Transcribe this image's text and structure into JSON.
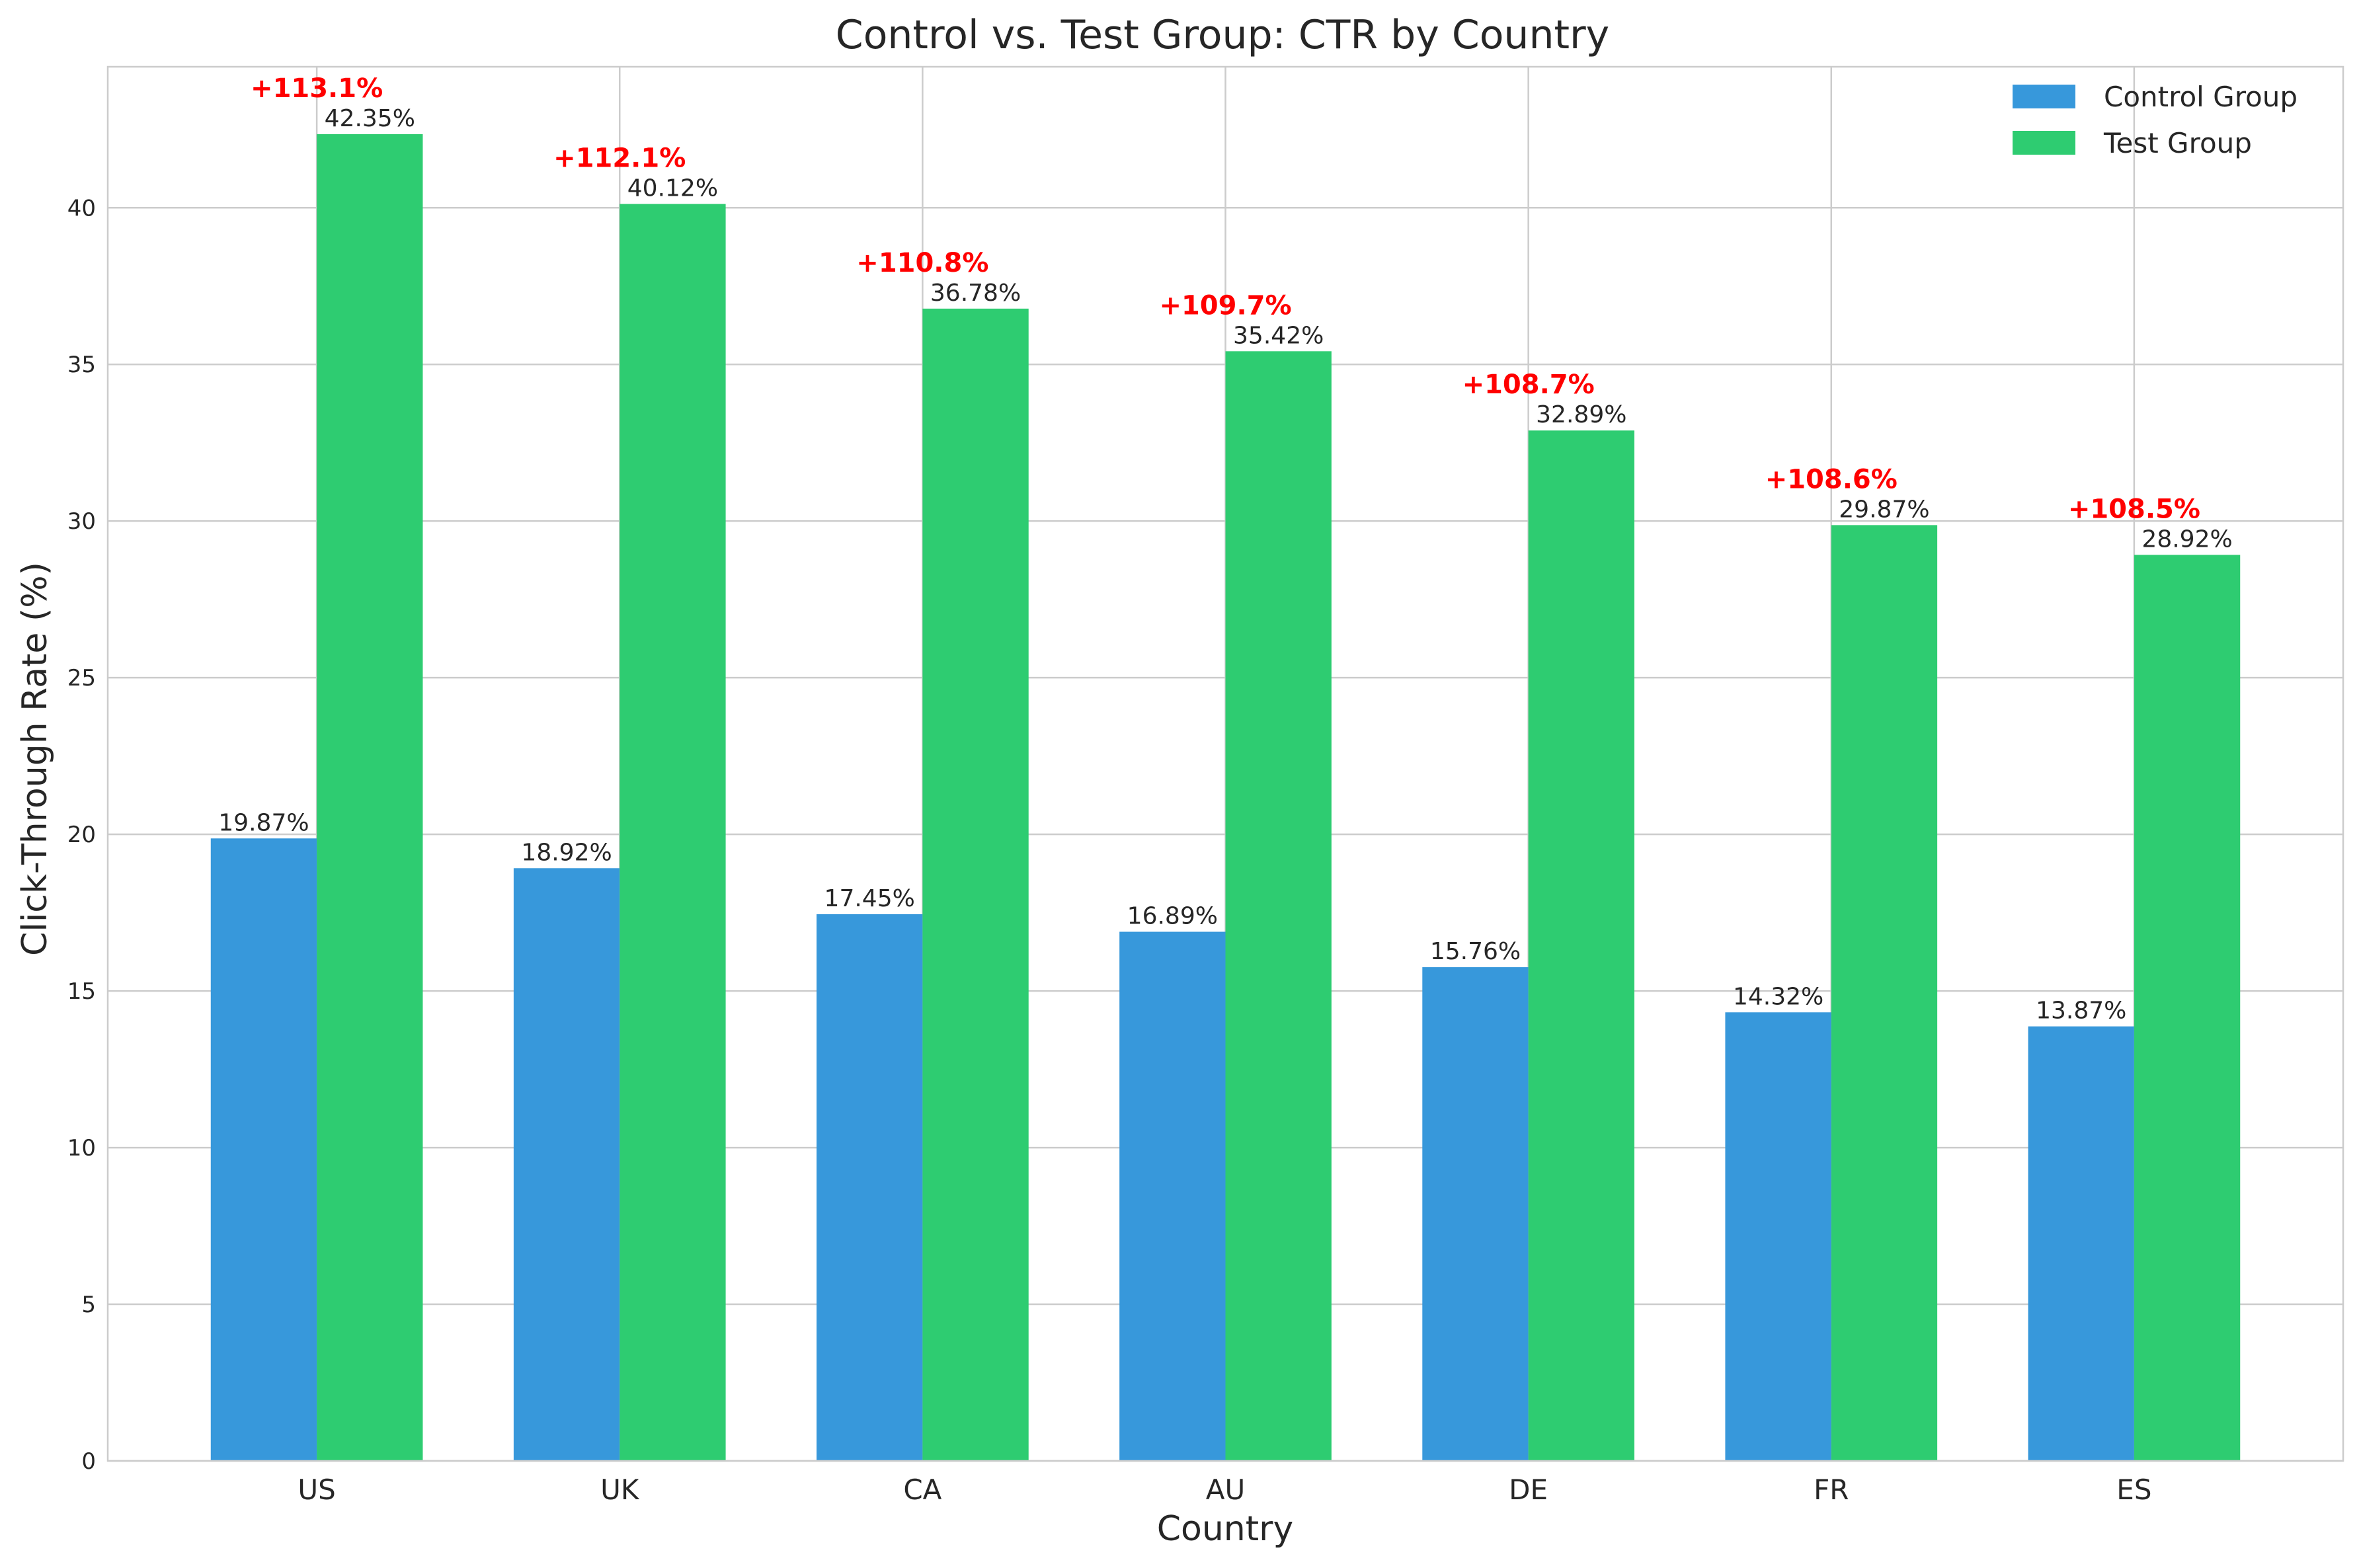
{
  "chart_data": {
    "type": "bar",
    "title": "Control vs. Test Group: CTR by Country",
    "xlabel": "Country",
    "ylabel": "Click-Through Rate (%)",
    "categories": [
      "US",
      "UK",
      "CA",
      "AU",
      "DE",
      "FR",
      "ES"
    ],
    "series": [
      {
        "name": "Control Group",
        "color": "#3798db",
        "values": [
          19.87,
          18.92,
          17.45,
          16.89,
          15.76,
          14.32,
          13.87
        ],
        "labels": [
          "19.87%",
          "18.92%",
          "17.45%",
          "16.89%",
          "15.76%",
          "14.32%",
          "13.87%"
        ]
      },
      {
        "name": "Test Group",
        "color": "#2ecc71",
        "values": [
          42.35,
          40.12,
          36.78,
          35.42,
          32.89,
          29.87,
          28.92
        ],
        "labels": [
          "42.35%",
          "40.12%",
          "36.78%",
          "35.42%",
          "32.89%",
          "29.87%",
          "28.92%"
        ]
      }
    ],
    "lift_labels": [
      "+113.1%",
      "+112.1%",
      "+110.8%",
      "+109.7%",
      "+108.7%",
      "+108.6%",
      "+108.5%"
    ],
    "lift_color": "#ff0000",
    "yticks": [
      0,
      5,
      10,
      15,
      20,
      25,
      30,
      35,
      40
    ],
    "ylim": [
      0,
      44.5
    ],
    "grid": true,
    "legend_position": "top-right"
  }
}
